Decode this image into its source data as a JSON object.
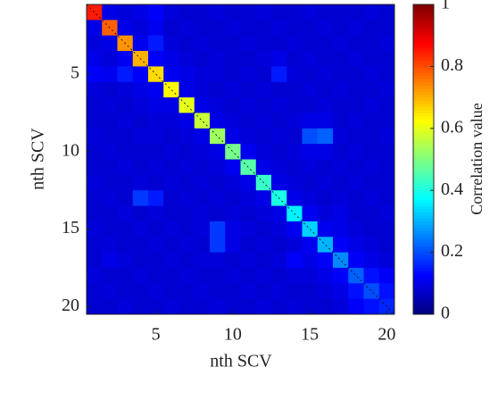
{
  "chart_data": {
    "type": "heatmap",
    "xlabel": "nth SCV",
    "ylabel": "nth SCV",
    "colorbar_label": "Correlation value",
    "colormap": "jet",
    "xlim": [
      0.5,
      20.5
    ],
    "ylim": [
      0.5,
      20.5
    ],
    "xticks": [
      5,
      10,
      15,
      20
    ],
    "yticks": [
      5,
      10,
      15,
      20
    ],
    "clim": [
      0,
      1
    ],
    "cticks": [
      0,
      0.2,
      0.4,
      0.6,
      0.8,
      1
    ],
    "z": [
      [
        0.85,
        0.1,
        0.09,
        0.1,
        0.12,
        0.09,
        0.08,
        0.08,
        0.09,
        0.08,
        0.08,
        0.09,
        0.08,
        0.08,
        0.09,
        0.08,
        0.08,
        0.08,
        0.09,
        0.08
      ],
      [
        0.1,
        0.78,
        0.1,
        0.09,
        0.11,
        0.08,
        0.09,
        0.08,
        0.08,
        0.09,
        0.08,
        0.08,
        0.09,
        0.08,
        0.08,
        0.09,
        0.08,
        0.09,
        0.08,
        0.08
      ],
      [
        0.09,
        0.1,
        0.73,
        0.11,
        0.15,
        0.09,
        0.08,
        0.09,
        0.08,
        0.08,
        0.09,
        0.08,
        0.08,
        0.09,
        0.08,
        0.08,
        0.09,
        0.08,
        0.08,
        0.09
      ],
      [
        0.1,
        0.09,
        0.11,
        0.7,
        0.12,
        0.1,
        0.09,
        0.08,
        0.09,
        0.08,
        0.08,
        0.09,
        0.1,
        0.08,
        0.09,
        0.08,
        0.08,
        0.09,
        0.08,
        0.08
      ],
      [
        0.12,
        0.11,
        0.15,
        0.12,
        0.66,
        0.11,
        0.1,
        0.09,
        0.09,
        0.08,
        0.09,
        0.08,
        0.15,
        0.09,
        0.08,
        0.09,
        0.08,
        0.08,
        0.09,
        0.08
      ],
      [
        0.09,
        0.08,
        0.09,
        0.1,
        0.11,
        0.63,
        0.1,
        0.09,
        0.08,
        0.09,
        0.08,
        0.09,
        0.08,
        0.08,
        0.09,
        0.08,
        0.09,
        0.08,
        0.08,
        0.09
      ],
      [
        0.08,
        0.09,
        0.08,
        0.09,
        0.1,
        0.1,
        0.6,
        0.1,
        0.09,
        0.08,
        0.09,
        0.08,
        0.09,
        0.08,
        0.08,
        0.09,
        0.08,
        0.08,
        0.09,
        0.08
      ],
      [
        0.08,
        0.08,
        0.09,
        0.08,
        0.09,
        0.09,
        0.1,
        0.57,
        0.1,
        0.09,
        0.08,
        0.09,
        0.08,
        0.09,
        0.1,
        0.1,
        0.08,
        0.09,
        0.08,
        0.08
      ],
      [
        0.09,
        0.08,
        0.08,
        0.09,
        0.09,
        0.08,
        0.09,
        0.1,
        0.53,
        0.1,
        0.09,
        0.08,
        0.09,
        0.08,
        0.2,
        0.22,
        0.09,
        0.08,
        0.08,
        0.09
      ],
      [
        0.08,
        0.09,
        0.08,
        0.08,
        0.08,
        0.09,
        0.08,
        0.09,
        0.1,
        0.49,
        0.11,
        0.09,
        0.08,
        0.09,
        0.1,
        0.1,
        0.08,
        0.09,
        0.08,
        0.08
      ],
      [
        0.08,
        0.08,
        0.09,
        0.08,
        0.09,
        0.08,
        0.09,
        0.08,
        0.09,
        0.11,
        0.46,
        0.1,
        0.09,
        0.08,
        0.09,
        0.08,
        0.09,
        0.08,
        0.09,
        0.08
      ],
      [
        0.09,
        0.08,
        0.08,
        0.09,
        0.08,
        0.09,
        0.08,
        0.09,
        0.08,
        0.09,
        0.1,
        0.43,
        0.1,
        0.09,
        0.08,
        0.09,
        0.08,
        0.09,
        0.08,
        0.08
      ],
      [
        0.08,
        0.09,
        0.08,
        0.18,
        0.15,
        0.08,
        0.09,
        0.08,
        0.09,
        0.08,
        0.09,
        0.1,
        0.4,
        0.1,
        0.09,
        0.08,
        0.09,
        0.08,
        0.09,
        0.08
      ],
      [
        0.08,
        0.08,
        0.09,
        0.08,
        0.09,
        0.08,
        0.08,
        0.09,
        0.08,
        0.09,
        0.08,
        0.09,
        0.1,
        0.36,
        0.11,
        0.09,
        0.1,
        0.08,
        0.08,
        0.09
      ],
      [
        0.09,
        0.08,
        0.08,
        0.09,
        0.08,
        0.09,
        0.08,
        0.09,
        0.18,
        0.1,
        0.09,
        0.08,
        0.09,
        0.11,
        0.33,
        0.11,
        0.1,
        0.09,
        0.08,
        0.08
      ],
      [
        0.08,
        0.09,
        0.08,
        0.08,
        0.09,
        0.08,
        0.09,
        0.08,
        0.18,
        0.1,
        0.08,
        0.09,
        0.08,
        0.09,
        0.11,
        0.3,
        0.12,
        0.1,
        0.09,
        0.08
      ],
      [
        0.08,
        0.1,
        0.09,
        0.08,
        0.08,
        0.09,
        0.08,
        0.09,
        0.09,
        0.08,
        0.09,
        0.08,
        0.09,
        0.12,
        0.1,
        0.12,
        0.26,
        0.12,
        0.1,
        0.09
      ],
      [
        0.09,
        0.08,
        0.08,
        0.09,
        0.08,
        0.08,
        0.09,
        0.08,
        0.08,
        0.09,
        0.08,
        0.09,
        0.08,
        0.09,
        0.09,
        0.1,
        0.12,
        0.22,
        0.14,
        0.12
      ],
      [
        0.08,
        0.09,
        0.08,
        0.08,
        0.09,
        0.08,
        0.08,
        0.09,
        0.08,
        0.08,
        0.09,
        0.08,
        0.09,
        0.08,
        0.08,
        0.09,
        0.1,
        0.14,
        0.2,
        0.14
      ],
      [
        0.08,
        0.08,
        0.09,
        0.08,
        0.08,
        0.09,
        0.08,
        0.08,
        0.09,
        0.08,
        0.08,
        0.09,
        0.08,
        0.09,
        0.08,
        0.08,
        0.09,
        0.12,
        0.14,
        0.16
      ]
    ]
  }
}
